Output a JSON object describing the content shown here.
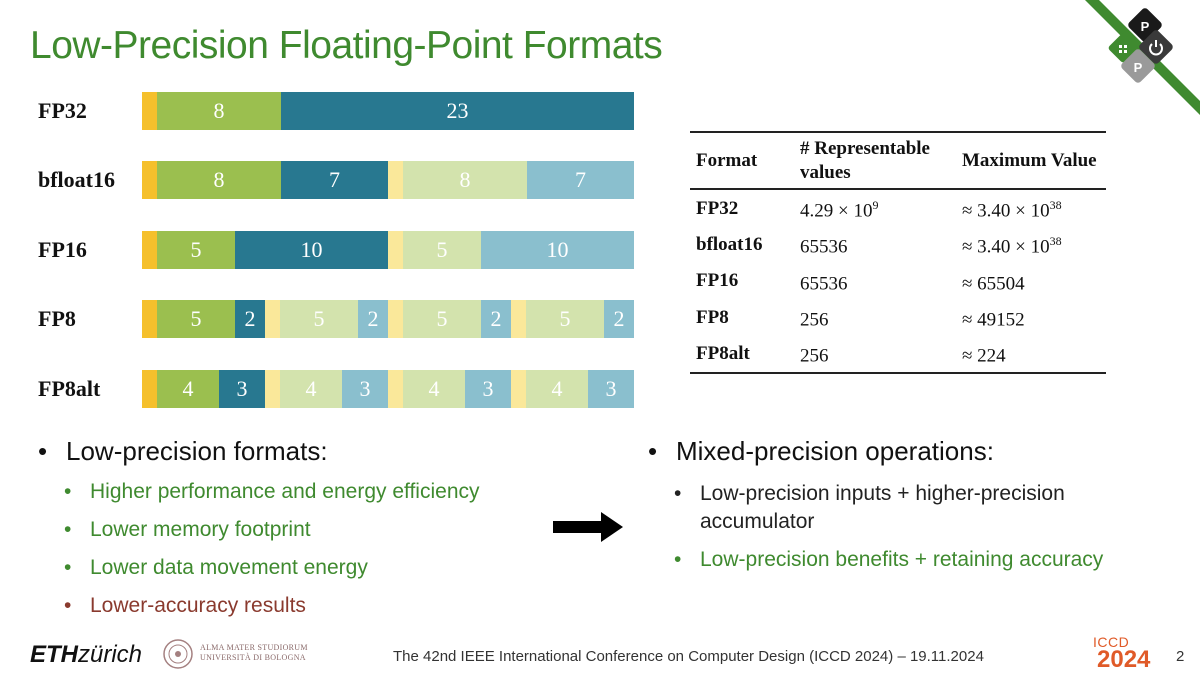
{
  "slide": {
    "title": "Low-Precision Floating-Point Formats",
    "page_number": "2"
  },
  "colors": {
    "title_green": "#3f8a2f",
    "sign": "#f5c02c",
    "exponent": "#9bbf4f",
    "mantissa": "#287890",
    "exponent_light": "#d3e3ad",
    "mantissa_light": "#8abfce",
    "footer_orange": "#e05a28"
  },
  "formats": [
    {
      "label": "FP32",
      "packed": [
        {
          "bits": "8",
          "part": "exponent",
          "shade": "dark"
        },
        {
          "bits": "23",
          "part": "mantissa",
          "shade": "dark"
        }
      ]
    },
    {
      "label": "bfloat16",
      "packed": [
        {
          "bits": "8",
          "part": "exponent",
          "shade": "dark"
        },
        {
          "bits": "7",
          "part": "mantissa",
          "shade": "dark"
        },
        {
          "bits": "8",
          "part": "exponent",
          "shade": "light"
        },
        {
          "bits": "7",
          "part": "mantissa",
          "shade": "light"
        }
      ]
    },
    {
      "label": "FP16",
      "packed": [
        {
          "bits": "5",
          "part": "exponent",
          "shade": "dark"
        },
        {
          "bits": "10",
          "part": "mantissa",
          "shade": "dark"
        },
        {
          "bits": "5",
          "part": "exponent",
          "shade": "light"
        },
        {
          "bits": "10",
          "part": "mantissa",
          "shade": "light"
        }
      ]
    },
    {
      "label": "FP8",
      "packed": [
        {
          "bits": "5",
          "part": "exponent",
          "shade": "dark"
        },
        {
          "bits": "2",
          "part": "mantissa",
          "shade": "dark"
        },
        {
          "bits": "5",
          "part": "exponent",
          "shade": "light"
        },
        {
          "bits": "2",
          "part": "mantissa",
          "shade": "light"
        },
        {
          "bits": "5",
          "part": "exponent",
          "shade": "light"
        },
        {
          "bits": "2",
          "part": "mantissa",
          "shade": "light"
        },
        {
          "bits": "5",
          "part": "exponent",
          "shade": "light"
        },
        {
          "bits": "2",
          "part": "mantissa",
          "shade": "light"
        }
      ]
    },
    {
      "label": "FP8alt",
      "packed": [
        {
          "bits": "4",
          "part": "exponent",
          "shade": "dark"
        },
        {
          "bits": "3",
          "part": "mantissa",
          "shade": "dark"
        },
        {
          "bits": "4",
          "part": "exponent",
          "shade": "light"
        },
        {
          "bits": "3",
          "part": "mantissa",
          "shade": "light"
        },
        {
          "bits": "4",
          "part": "exponent",
          "shade": "light"
        },
        {
          "bits": "3",
          "part": "mantissa",
          "shade": "light"
        },
        {
          "bits": "4",
          "part": "exponent",
          "shade": "light"
        },
        {
          "bits": "3",
          "part": "mantissa",
          "shade": "light"
        }
      ]
    }
  ],
  "table": {
    "headers": [
      "Format",
      "# Representable values",
      "Maximum Value"
    ],
    "rows": [
      {
        "format": "FP32",
        "count_base": "4.29 × 10",
        "count_exp": "9",
        "max_base": "≈ 3.40 × 10",
        "max_exp": "38"
      },
      {
        "format": "bfloat16",
        "count_base": "65536",
        "count_exp": "",
        "max_base": "≈ 3.40 × 10",
        "max_exp": "38"
      },
      {
        "format": "FP16",
        "count_base": "65536",
        "count_exp": "",
        "max_base": "≈ 65504",
        "max_exp": ""
      },
      {
        "format": "FP8",
        "count_base": "256",
        "count_exp": "",
        "max_base": "≈ 49152",
        "max_exp": ""
      },
      {
        "format": "FP8alt",
        "count_base": "256",
        "count_exp": "",
        "max_base": "≈ 224",
        "max_exp": ""
      }
    ]
  },
  "left_bullets": {
    "heading_bold": "Low-precision",
    "heading_rest": " formats:",
    "items": [
      {
        "text": "Higher performance and energy efficiency",
        "tone": "green"
      },
      {
        "text": "Lower memory footprint",
        "tone": "green"
      },
      {
        "text": "Lower data movement energy",
        "tone": "green"
      },
      {
        "text": "Lower-accuracy results",
        "tone": "red"
      }
    ]
  },
  "right_bullets": {
    "heading_bold": "Mixed-precision",
    "heading_rest": " operations:",
    "items": [
      {
        "text": "Low-precision inputs + higher-precision accumulator",
        "tone": "dark"
      },
      {
        "text": "Low-precision benefits + retaining accuracy",
        "tone": "green"
      }
    ]
  },
  "footer": {
    "eth_bold": "ETH",
    "eth_rest": "zürich",
    "unibo_line1": "ALMA MATER STUDIORUM",
    "unibo_line2": "UNIVERSITÀ DI BOLOGNA",
    "conference": "The 42nd IEEE International Conference on Computer Design (ICCD 2024) – 19.11.2024",
    "iccd_name": "ICCD",
    "iccd_year": "2024"
  },
  "corner_logo": {
    "letter_top": "P",
    "letter_bottom": "P",
    "icon": "power-icon"
  }
}
